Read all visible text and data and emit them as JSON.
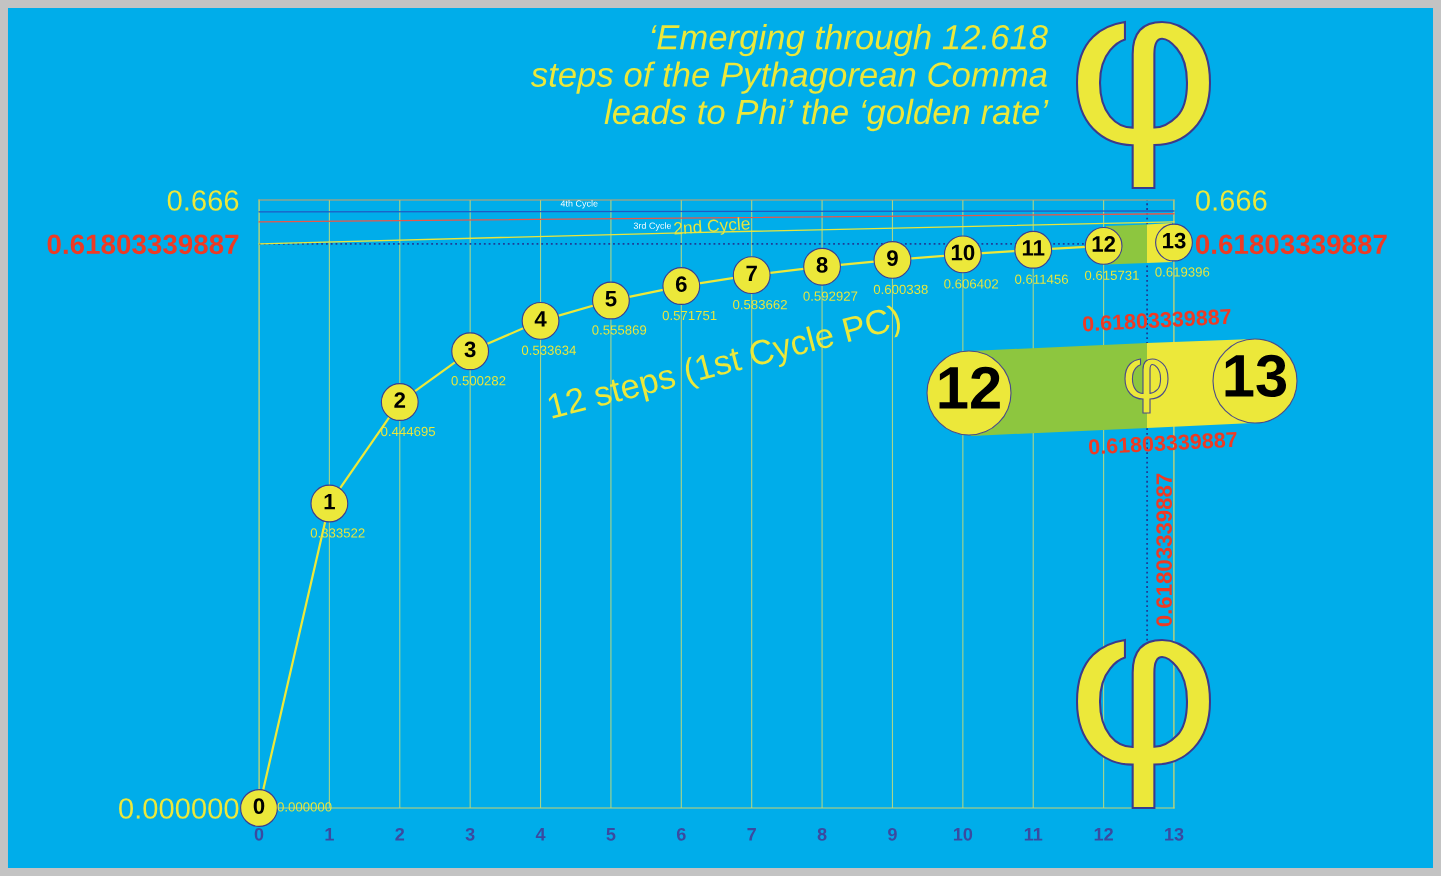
{
  "chart_data": {
    "type": "line",
    "title": "‘Emerging through 12.618\nsteps of the Pythagorean Comma\nleads to Phi’ the ‘golden rate’",
    "x": [
      0,
      1,
      2,
      3,
      4,
      5,
      6,
      7,
      8,
      9,
      10,
      11,
      12,
      13
    ],
    "series": [
      {
        "name": "12 steps (1st Cycle PC)",
        "color": "#ece83a",
        "marker": "circle",
        "values": [
          0,
          0.333522,
          0.444695,
          0.500282,
          0.533634,
          0.555869,
          0.571751,
          0.583662,
          0.592927,
          0.600338,
          0.606402,
          0.611456,
          0.615731,
          0.619396
        ],
        "value_labels": [
          "0.000000",
          "0.333522",
          "0.444695",
          "0.500282",
          "0.533634",
          "0.555869",
          "0.571751",
          "0.583662",
          "0.592927",
          "0.600338",
          "0.606402",
          "0.611456",
          "0.615731",
          "0.619396"
        ]
      },
      {
        "name": "2nd Cycle",
        "color": "#e8e53c",
        "marker": "none",
        "x": [
          0,
          6,
          13
        ],
        "values": [
          0.618,
          0.63,
          0.642
        ]
      },
      {
        "name": "3rd Cycle",
        "color": "#e8574a",
        "marker": "none",
        "x": [
          0,
          13
        ],
        "values": [
          0.642,
          0.651
        ]
      },
      {
        "name": "4th Cycle",
        "color": "#1f5bc4",
        "marker": "none",
        "x": [
          0,
          13
        ],
        "values": [
          0.653,
          0.654
        ]
      }
    ],
    "xlim": [
      0,
      13
    ],
    "xticks": [
      0,
      1,
      2,
      3,
      4,
      5,
      6,
      7,
      8,
      9,
      10,
      11,
      12,
      13
    ],
    "ylim": [
      0,
      0.666
    ],
    "yticks": [
      {
        "value": 0,
        "label": "0.000000"
      },
      {
        "value": 0.61803339887,
        "label": "0.61803339887"
      },
      0.666
    ],
    "y2lim": [
      0,
      0.666
    ],
    "y2ticks": [
      {
        "value": 0.61803339887,
        "label": "0.61803339887"
      },
      0.666
    ],
    "ref_lines": [
      {
        "axis": "y",
        "value": 0.61803339887,
        "color": "#1e3c96",
        "line_style": "dotted"
      },
      {
        "axis": "x",
        "value": 12.618,
        "color": "#1e3c96",
        "line_style": "dotted"
      }
    ],
    "annotations": [
      {
        "text": "0",
        "x": 0,
        "y": 0
      },
      {
        "text": "1",
        "x": 1,
        "y": 0.333522
      },
      {
        "text": "2",
        "x": 2,
        "y": 0.444695
      },
      {
        "text": "3",
        "x": 3,
        "y": 0.500282
      },
      {
        "text": "4",
        "x": 4,
        "y": 0.533634
      },
      {
        "text": "5",
        "x": 5,
        "y": 0.555869
      },
      {
        "text": "6",
        "x": 6,
        "y": 0.571751
      },
      {
        "text": "7",
        "x": 7,
        "y": 0.583662
      },
      {
        "text": "8",
        "x": 8,
        "y": 0.592927
      },
      {
        "text": "9",
        "x": 9,
        "y": 0.600338
      },
      {
        "text": "10",
        "x": 10,
        "y": 0.606402
      },
      {
        "text": "11",
        "x": 11,
        "y": 0.611456
      },
      {
        "text": "12",
        "x": 12,
        "y": 0.615731
      },
      {
        "text": "13",
        "x": 13,
        "y": 0.619396
      },
      "12",
      "13",
      "0.61803339887",
      "0.61803339887",
      "0.61803339887"
    ],
    "grid": "x",
    "line_style": "solid"
  }
}
